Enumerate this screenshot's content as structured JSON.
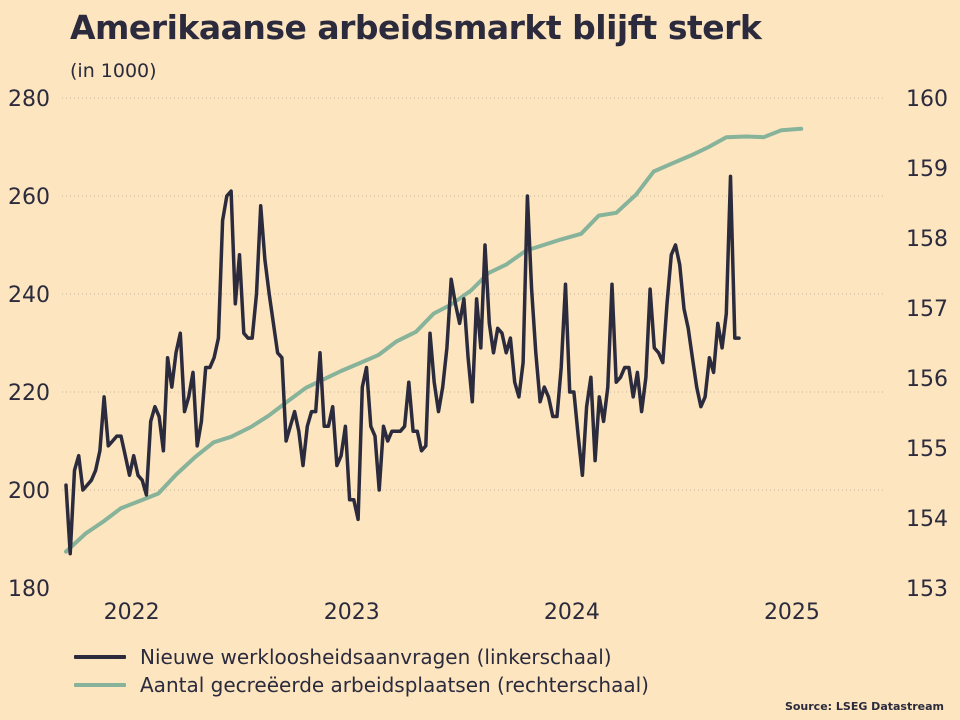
{
  "title": "Amerikaanse arbeidsmarkt blijft sterk",
  "subtitle": "(in 1000)",
  "source": "Source: LSEG Datastream",
  "colors": {
    "background": "#fce5bf",
    "claims": "#2b2b3d",
    "jobs": "#86b39a",
    "grid": "#c8b69a"
  },
  "chart_data": {
    "type": "line",
    "x_ticks": [
      {
        "label": "2022",
        "x": 2022.0
      },
      {
        "label": "2023",
        "x": 2023.0
      },
      {
        "label": "2024",
        "x": 2024.0
      },
      {
        "label": "2025",
        "x": 2025.0
      }
    ],
    "x_range": [
      2021.87,
      2025.55
    ],
    "left_axis": {
      "label": "Nieuwe werkloosheidsaanvragen (linkerschaal)",
      "ylim": [
        180,
        280
      ],
      "ticks": [
        "180",
        "200",
        "220",
        "240",
        "260",
        "280"
      ]
    },
    "right_axis": {
      "label": "Aantal gecreëerde arbeidsplaatsen (rechterschaal)",
      "ylim": [
        153,
        160
      ],
      "ticks": [
        "153",
        "154",
        "155",
        "156",
        "157",
        "158",
        "159",
        "160"
      ]
    },
    "series": [
      {
        "name": "Nieuwe werkloosheidsaanvragen (linkerschaal)",
        "axis": "left",
        "x_start": 2021.87,
        "x_step": 0.01923,
        "values": [
          201,
          187,
          204,
          207,
          200,
          201,
          202,
          204,
          208,
          219,
          209,
          210,
          211,
          211,
          207,
          203,
          207,
          203,
          202,
          199,
          214,
          217,
          215,
          208,
          227,
          221,
          228,
          232,
          216,
          219,
          224,
          209,
          214,
          225,
          225,
          227,
          231,
          255,
          260,
          261,
          238,
          248,
          232,
          231,
          231,
          240,
          258,
          247,
          240,
          234,
          228,
          227,
          210,
          213,
          216,
          212,
          205,
          213,
          216,
          216,
          228,
          213,
          213,
          217,
          205,
          207,
          213,
          198,
          198,
          194,
          221,
          225,
          213,
          211,
          200,
          213,
          210,
          212,
          212,
          212,
          213,
          222,
          212,
          212,
          208,
          209,
          232,
          222,
          216,
          221,
          229,
          243,
          238,
          234,
          239,
          227,
          218,
          239,
          229,
          250,
          234,
          228,
          233,
          232,
          228,
          231,
          222,
          219,
          226,
          260,
          241,
          228,
          218,
          221,
          219,
          215,
          215,
          225,
          242,
          220,
          220,
          211,
          203,
          217,
          223,
          206,
          219,
          214,
          221,
          242,
          222,
          223,
          225,
          225,
          219,
          224,
          216,
          223,
          241,
          229,
          228,
          226,
          238,
          248,
          250,
          246,
          237,
          233,
          227,
          221,
          217,
          219,
          227,
          224,
          234,
          229,
          236,
          264,
          231,
          231
        ]
      },
      {
        "name": "Aantal gecreëerde arbeidsplaatsen (rechterschaal)",
        "axis": "right",
        "points": [
          [
            2021.87,
            153.52
          ],
          [
            2021.96,
            153.78
          ],
          [
            2022.04,
            153.95
          ],
          [
            2022.12,
            154.14
          ],
          [
            2022.21,
            154.25
          ],
          [
            2022.29,
            154.35
          ],
          [
            2022.37,
            154.62
          ],
          [
            2022.46,
            154.88
          ],
          [
            2022.54,
            155.08
          ],
          [
            2022.62,
            155.16
          ],
          [
            2022.71,
            155.3
          ],
          [
            2022.79,
            155.46
          ],
          [
            2022.87,
            155.65
          ],
          [
            2022.96,
            155.86
          ],
          [
            2023.04,
            155.98
          ],
          [
            2023.12,
            156.1
          ],
          [
            2023.21,
            156.22
          ],
          [
            2023.29,
            156.33
          ],
          [
            2023.37,
            156.52
          ],
          [
            2023.46,
            156.66
          ],
          [
            2023.54,
            156.92
          ],
          [
            2023.62,
            157.05
          ],
          [
            2023.71,
            157.25
          ],
          [
            2023.79,
            157.5
          ],
          [
            2023.87,
            157.62
          ],
          [
            2023.96,
            157.82
          ],
          [
            2024.04,
            157.9
          ],
          [
            2024.12,
            157.98
          ],
          [
            2024.21,
            158.06
          ],
          [
            2024.29,
            158.32
          ],
          [
            2024.37,
            158.36
          ],
          [
            2024.46,
            158.62
          ],
          [
            2024.54,
            158.95
          ],
          [
            2024.62,
            159.06
          ],
          [
            2024.71,
            159.18
          ],
          [
            2024.79,
            159.3
          ],
          [
            2024.87,
            159.44
          ],
          [
            2024.96,
            159.45
          ],
          [
            2025.04,
            159.44
          ],
          [
            2025.12,
            159.54
          ],
          [
            2025.21,
            159.56
          ]
        ]
      }
    ]
  }
}
